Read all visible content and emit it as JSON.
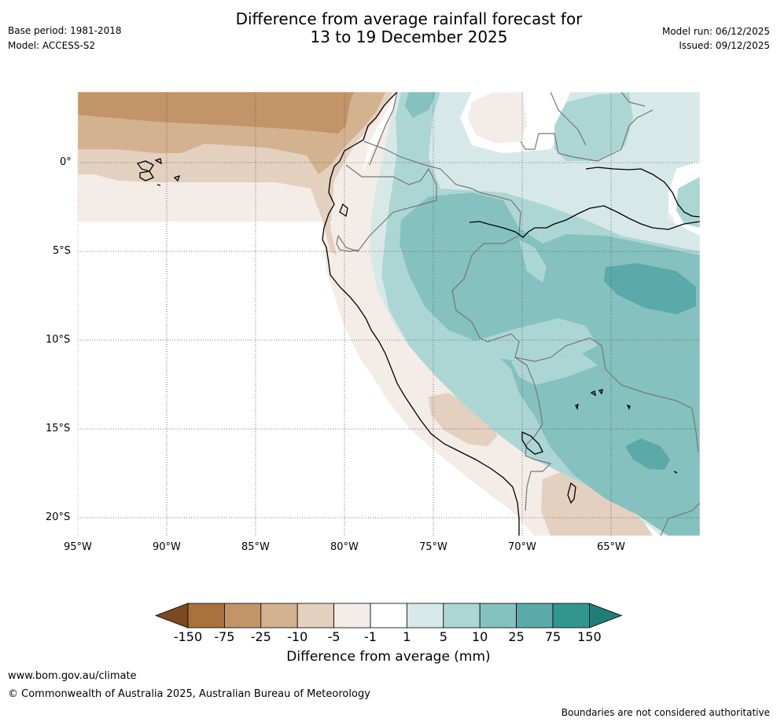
{
  "header": {
    "title_line1": "Difference from average rainfall forecast for",
    "title_line2": "13 to 19 December 2025",
    "base_period": "Base period: 1981-2018",
    "model": "Model: ACCESS-S2",
    "model_run": "Model run: 06/12/2025",
    "issued": "Issued: 09/12/2025"
  },
  "map": {
    "lon_labels": [
      "95°W",
      "90°W",
      "85°W",
      "80°W",
      "75°W",
      "70°W",
      "65°W"
    ],
    "lat_labels": [
      "0°",
      "5°S",
      "10°S",
      "15°S",
      "20°S"
    ]
  },
  "colorbar": {
    "label": "Difference from average (mm)",
    "ticks": [
      "-150",
      "-75",
      "-25",
      "-10",
      "-5",
      "-1",
      "1",
      "5",
      "10",
      "25",
      "75",
      "150"
    ],
    "colors": [
      "#7b4a22",
      "#a8713d",
      "#c29468",
      "#d3b290",
      "#e4d0bf",
      "#f4ece6",
      "#ffffff",
      "#d6e9e8",
      "#acd6d4",
      "#84c1bf",
      "#5aaaa9",
      "#32958f",
      "#227c77"
    ]
  },
  "footer": {
    "website": "www.bom.gov.au/climate",
    "copyright": "© Commonwealth of Australia 2025, Australian Bureau of Meteorology",
    "disclaimer": "Boundaries are not considered authoritative"
  }
}
